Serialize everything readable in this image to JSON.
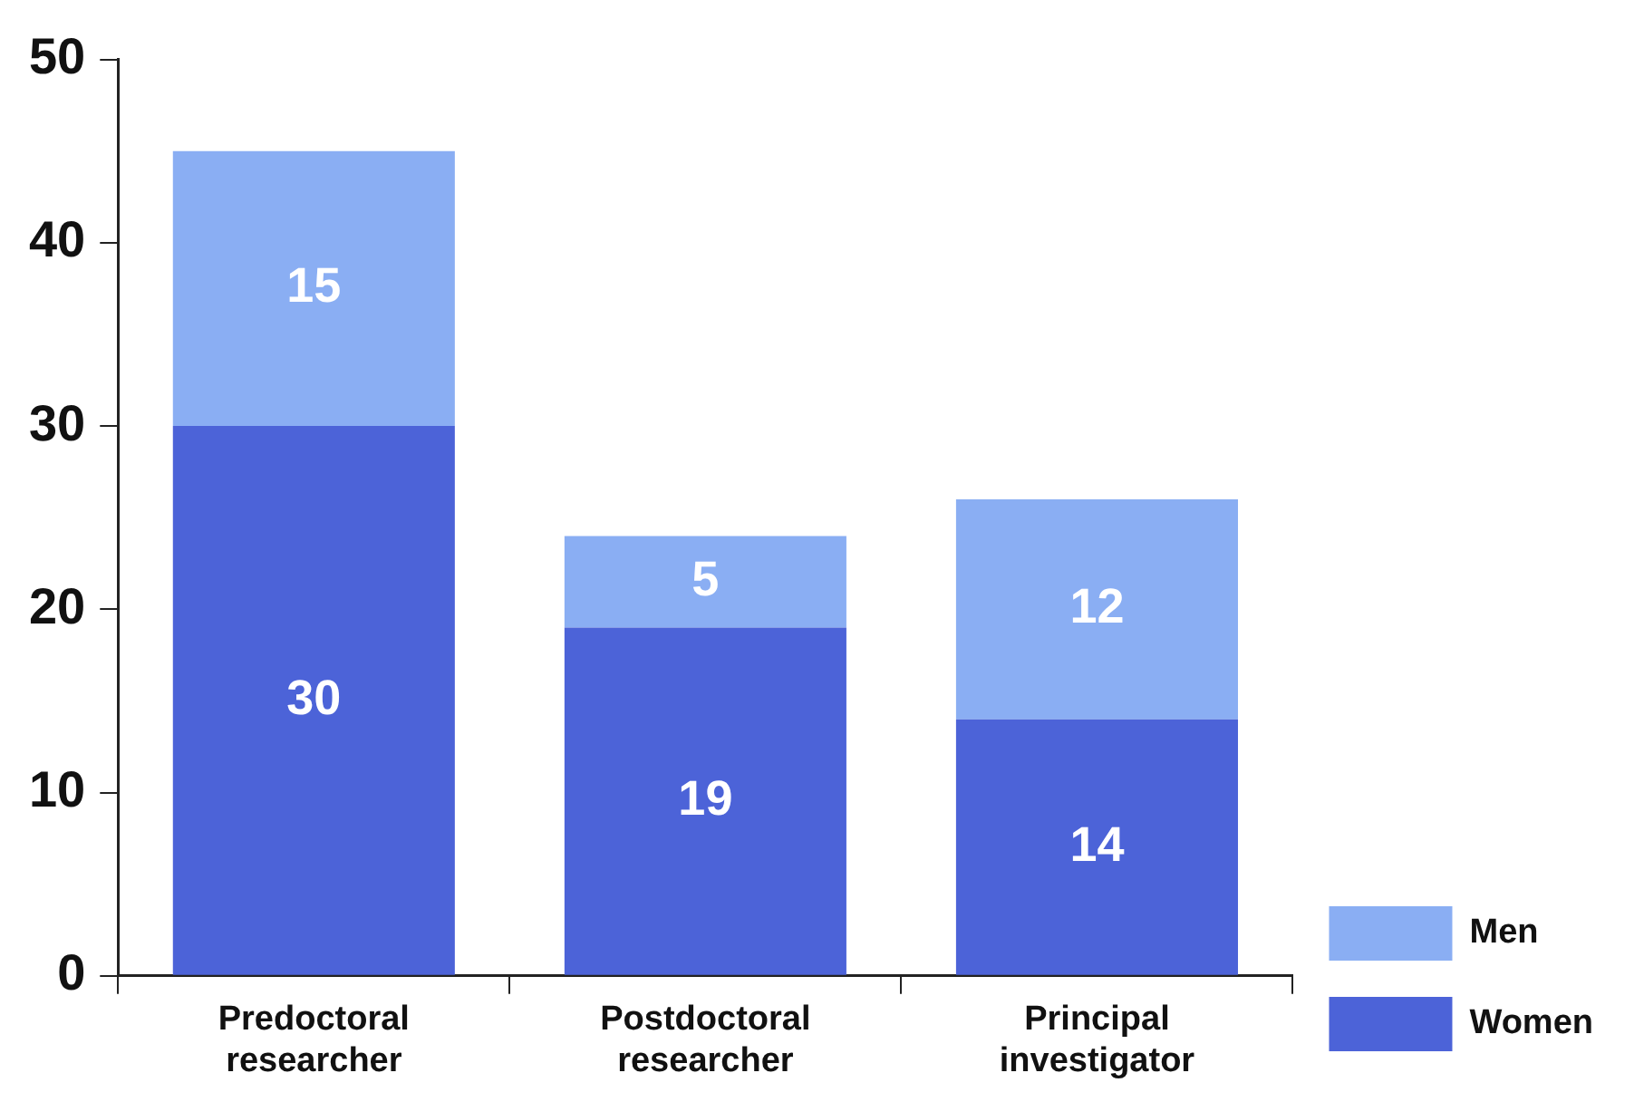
{
  "chart_data": {
    "type": "bar",
    "stacked": true,
    "categories": [
      "Predoctoral researcher",
      "Postdoctoral researcher",
      "Principal investigator"
    ],
    "series": [
      {
        "name": "Women",
        "color": "#4c63d8",
        "values": [
          30,
          19,
          14
        ]
      },
      {
        "name": "Men",
        "color": "#8aaef3",
        "values": [
          15,
          5,
          12
        ]
      }
    ],
    "ylim": [
      0,
      50
    ],
    "yticks": [
      0,
      10,
      20,
      30,
      40,
      50
    ],
    "grid": false,
    "legend": "bottom right",
    "data_labels": true
  }
}
